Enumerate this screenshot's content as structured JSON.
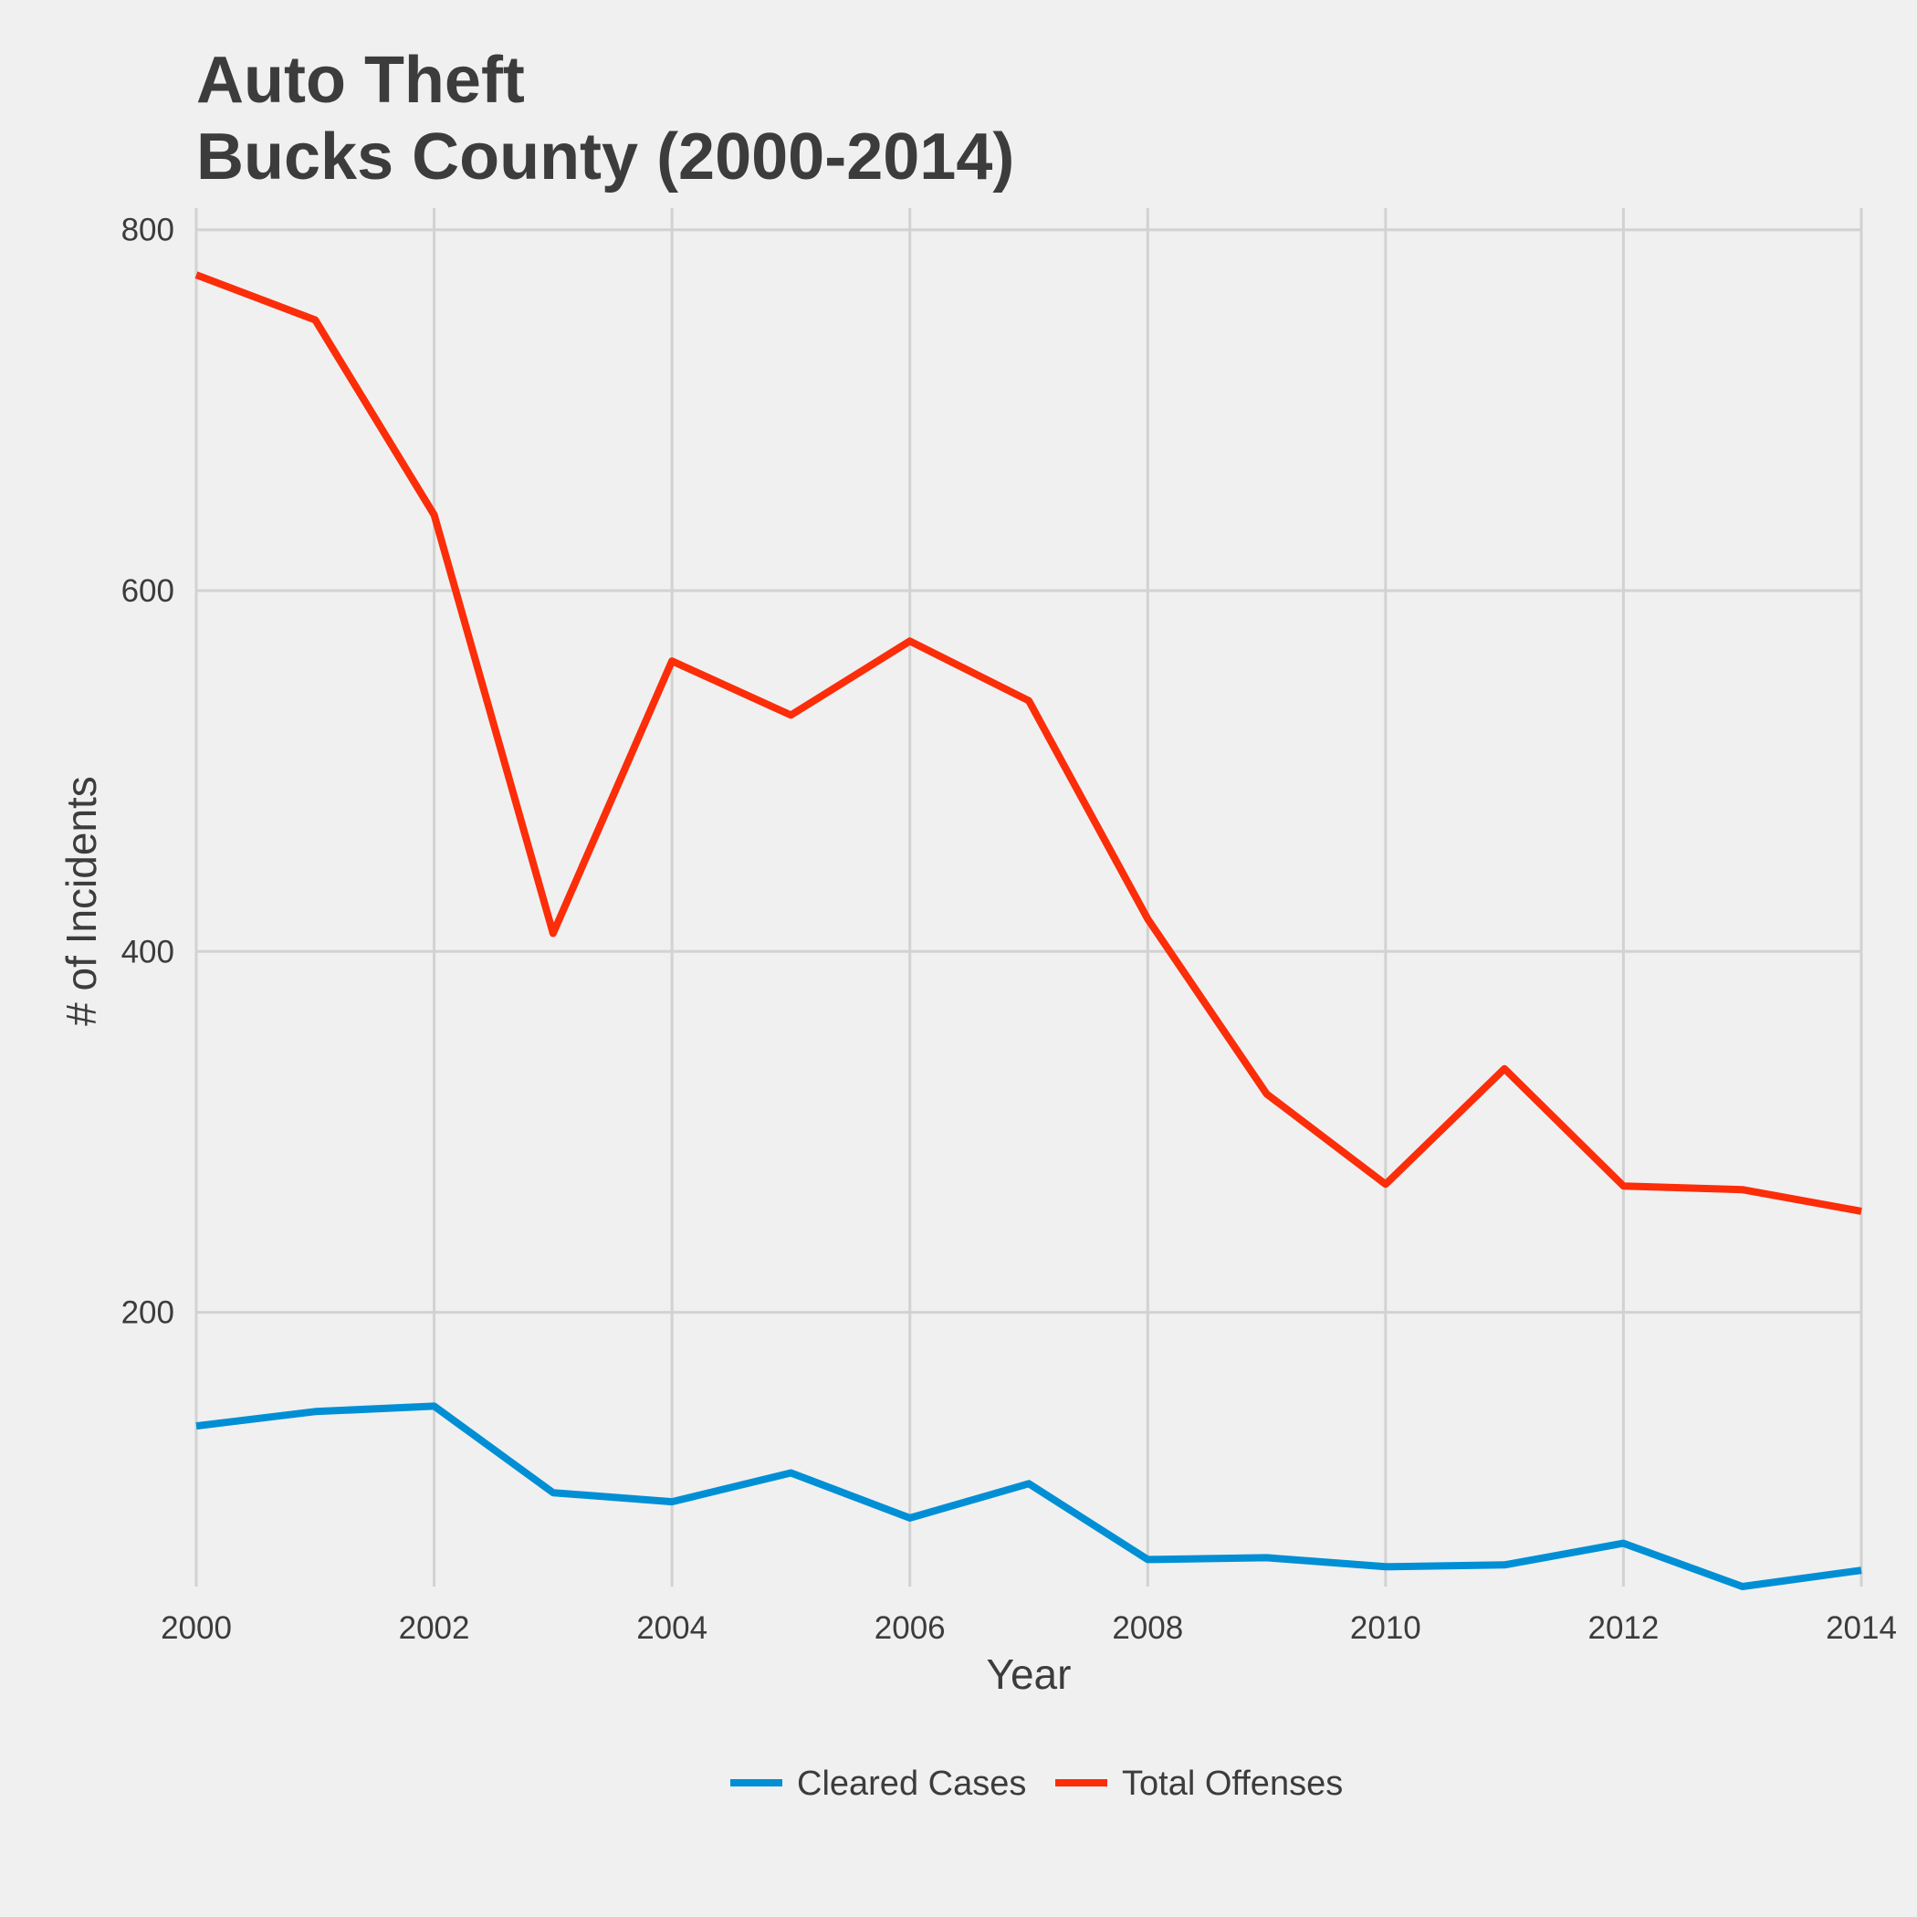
{
  "chart_data": {
    "type": "line",
    "title": "Auto Theft",
    "subtitle": "Bucks County (2000-2014)",
    "xlabel": "Year",
    "ylabel": "# of Incidents",
    "x": [
      2000,
      2001,
      2002,
      2003,
      2004,
      2005,
      2006,
      2007,
      2008,
      2009,
      2010,
      2011,
      2012,
      2013,
      2014
    ],
    "xlim": [
      2000,
      2014
    ],
    "ylim": [
      48,
      812
    ],
    "x_ticks": [
      2000,
      2002,
      2004,
      2006,
      2008,
      2010,
      2012,
      2014
    ],
    "y_ticks": [
      200,
      400,
      600,
      800
    ],
    "x_tick_labels": [
      "2000",
      "2002",
      "2004",
      "2006",
      "2008",
      "2010",
      "2012",
      "2014"
    ],
    "y_tick_labels": [
      "200",
      "400",
      "600",
      "800"
    ],
    "grid": true,
    "legend_position": "bottom",
    "series": [
      {
        "name": "Cleared Cases",
        "color": "#008fd5",
        "values": [
          137,
          145,
          148,
          100,
          95,
          111,
          86,
          105,
          63,
          64,
          59,
          60,
          72,
          48,
          57
        ]
      },
      {
        "name": "Total Offenses",
        "color": "#fc2d09",
        "values": [
          775,
          750,
          642,
          410,
          561,
          531,
          572,
          539,
          418,
          321,
          271,
          335,
          270,
          268,
          256
        ]
      }
    ]
  }
}
